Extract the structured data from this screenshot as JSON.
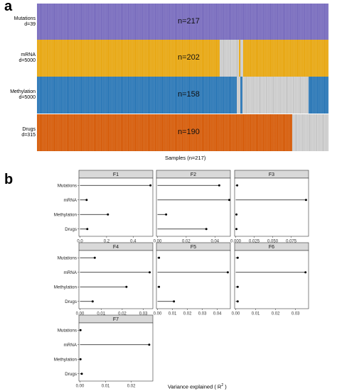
{
  "panel_a": {
    "label": "a",
    "rows": [
      {
        "name": "Mutations",
        "d": "d=39",
        "n": "n=217",
        "color": "#7B6FBF",
        "present_frac": 1.0,
        "gaps": []
      },
      {
        "name": "mRNA",
        "d": "d=5000",
        "n": "n=202",
        "color": "#E8A917",
        "present_frac": 1.0,
        "gaps": [
          [
            0.627,
            0.693
          ],
          [
            0.697,
            0.707
          ]
        ]
      },
      {
        "name": "Methylation",
        "d": "d=5000",
        "n": "n=158",
        "color": "#2F7AB8",
        "present_frac": 0.93,
        "gaps": [
          [
            0.686,
            0.697
          ],
          [
            0.704,
            0.932
          ]
        ]
      },
      {
        "name": "Drugs",
        "d": "d=315",
        "n": "n=190",
        "color": "#D65F0F",
        "present_frac": 0.876,
        "gaps": [
          [
            0.876,
            1.0
          ]
        ]
      }
    ],
    "xlabel": "Samples (n=217)"
  },
  "panel_b": {
    "label": "b",
    "xlabel": "Variance explained ( R",
    "xlabel_sup": "2",
    "xlabel_end": " )",
    "views": [
      "Mutations",
      "mRNA",
      "Methylation",
      "Drugs"
    ]
  },
  "chart_data": [
    {
      "type": "lollipop",
      "title": "F1",
      "categories": [
        "Mutations",
        "mRNA",
        "Methylation",
        "Drugs"
      ],
      "values": [
        0.53,
        0.05,
        0.21,
        0.055
      ],
      "xlim": [
        0,
        0.54
      ],
      "ticks": [
        0.0,
        0.2,
        0.4
      ],
      "tick_labels": [
        "0.0",
        "0.2",
        "0.4"
      ]
    },
    {
      "type": "lollipop",
      "title": "F2",
      "categories": [
        "Mutations",
        "mRNA",
        "Methylation",
        "Drugs"
      ],
      "values": [
        0.043,
        0.05,
        0.006,
        0.034
      ],
      "xlim": [
        0,
        0.05
      ],
      "ticks": [
        0.0,
        0.02,
        0.04
      ],
      "tick_labels": [
        "0.00",
        "0.02",
        "0.04"
      ]
    },
    {
      "type": "lollipop",
      "title": "F3",
      "categories": [
        "Mutations",
        "mRNA",
        "Methylation",
        "Drugs"
      ],
      "values": [
        0.002,
        0.095,
        0.001,
        0.001
      ],
      "xlim": [
        0,
        0.097
      ],
      "ticks": [
        0.0,
        0.025,
        0.05,
        0.075
      ],
      "tick_labels": [
        "0.000",
        "0.025",
        "0.050",
        "0.075"
      ]
    },
    {
      "type": "lollipop",
      "title": "F4",
      "categories": [
        "Mutations",
        "mRNA",
        "Methylation",
        "Drugs"
      ],
      "values": [
        0.007,
        0.033,
        0.022,
        0.006
      ],
      "xlim": [
        0,
        0.034
      ],
      "ticks": [
        0.0,
        0.01,
        0.02,
        0.03
      ],
      "tick_labels": [
        "0.00",
        "0.01",
        "0.02",
        "0.03"
      ]
    },
    {
      "type": "lollipop",
      "title": "F5",
      "categories": [
        "Mutations",
        "mRNA",
        "Methylation",
        "Drugs"
      ],
      "values": [
        0.001,
        0.047,
        0.001,
        0.011
      ],
      "xlim": [
        0,
        0.048
      ],
      "ticks": [
        0.0,
        0.01,
        0.02,
        0.03,
        0.04
      ],
      "tick_labels": [
        "0.00",
        "0.01",
        "0.02",
        "0.03",
        "0.04"
      ]
    },
    {
      "type": "lollipop",
      "title": "F6",
      "categories": [
        "Mutations",
        "mRNA",
        "Methylation",
        "Drugs"
      ],
      "values": [
        0.001,
        0.035,
        0.001,
        0.001
      ],
      "xlim": [
        0,
        0.036
      ],
      "ticks": [
        0.0,
        0.01,
        0.02,
        0.03
      ],
      "tick_labels": [
        "0.00",
        "0.01",
        "0.02",
        "0.03"
      ]
    },
    {
      "type": "lollipop",
      "title": "F7",
      "categories": [
        "Mutations",
        "mRNA",
        "Methylation",
        "Drugs"
      ],
      "values": [
        0.0002,
        0.027,
        0.0002,
        0.0007
      ],
      "xlim": [
        0,
        0.028
      ],
      "ticks": [
        0.0,
        0.01,
        0.02
      ],
      "tick_labels": [
        "0.00",
        "0.01",
        "0.02"
      ]
    }
  ]
}
